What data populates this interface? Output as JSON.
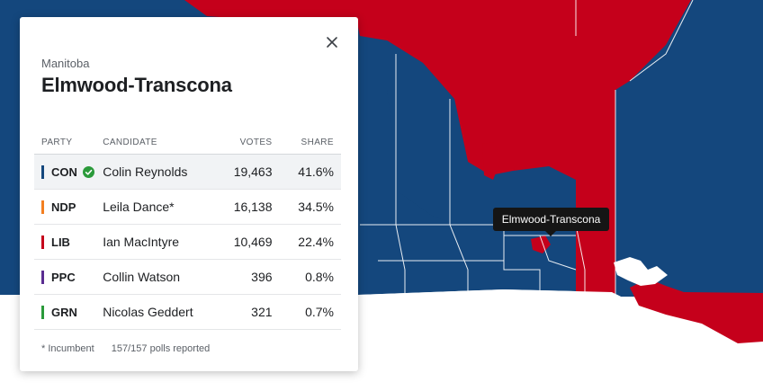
{
  "map": {
    "colors": {
      "con": "#14477d",
      "lib": "#c5001b",
      "boundary": "#ffffff"
    },
    "tooltip": "Elmwood-Transcona"
  },
  "card": {
    "province": "Manitoba",
    "riding": "Elmwood-Transcona",
    "headers": {
      "party": "PARTY",
      "candidate": "CANDIDATE",
      "votes": "VOTES",
      "share": "SHARE"
    },
    "rows": [
      {
        "party": "CON",
        "color": "#14477d",
        "candidate": "Colin Reynolds",
        "votes": "19,463",
        "share": "41.6%",
        "winner": true
      },
      {
        "party": "NDP",
        "color": "#f37f21",
        "candidate": "Leila Dance*",
        "votes": "16,138",
        "share": "34.5%",
        "winner": false
      },
      {
        "party": "LIB",
        "color": "#c5001b",
        "candidate": "Ian MacIntyre",
        "votes": "10,469",
        "share": "22.4%",
        "winner": false
      },
      {
        "party": "PPC",
        "color": "#5a2d91",
        "candidate": "Collin Watson",
        "votes": "396",
        "share": "0.8%",
        "winner": false
      },
      {
        "party": "GRN",
        "color": "#2a9a3a",
        "candidate": "Nicolas Geddert",
        "votes": "321",
        "share": "0.7%",
        "winner": false
      }
    ],
    "footnote": {
      "incumbent": "* Incumbent",
      "polls": "157/157 polls reported"
    }
  }
}
